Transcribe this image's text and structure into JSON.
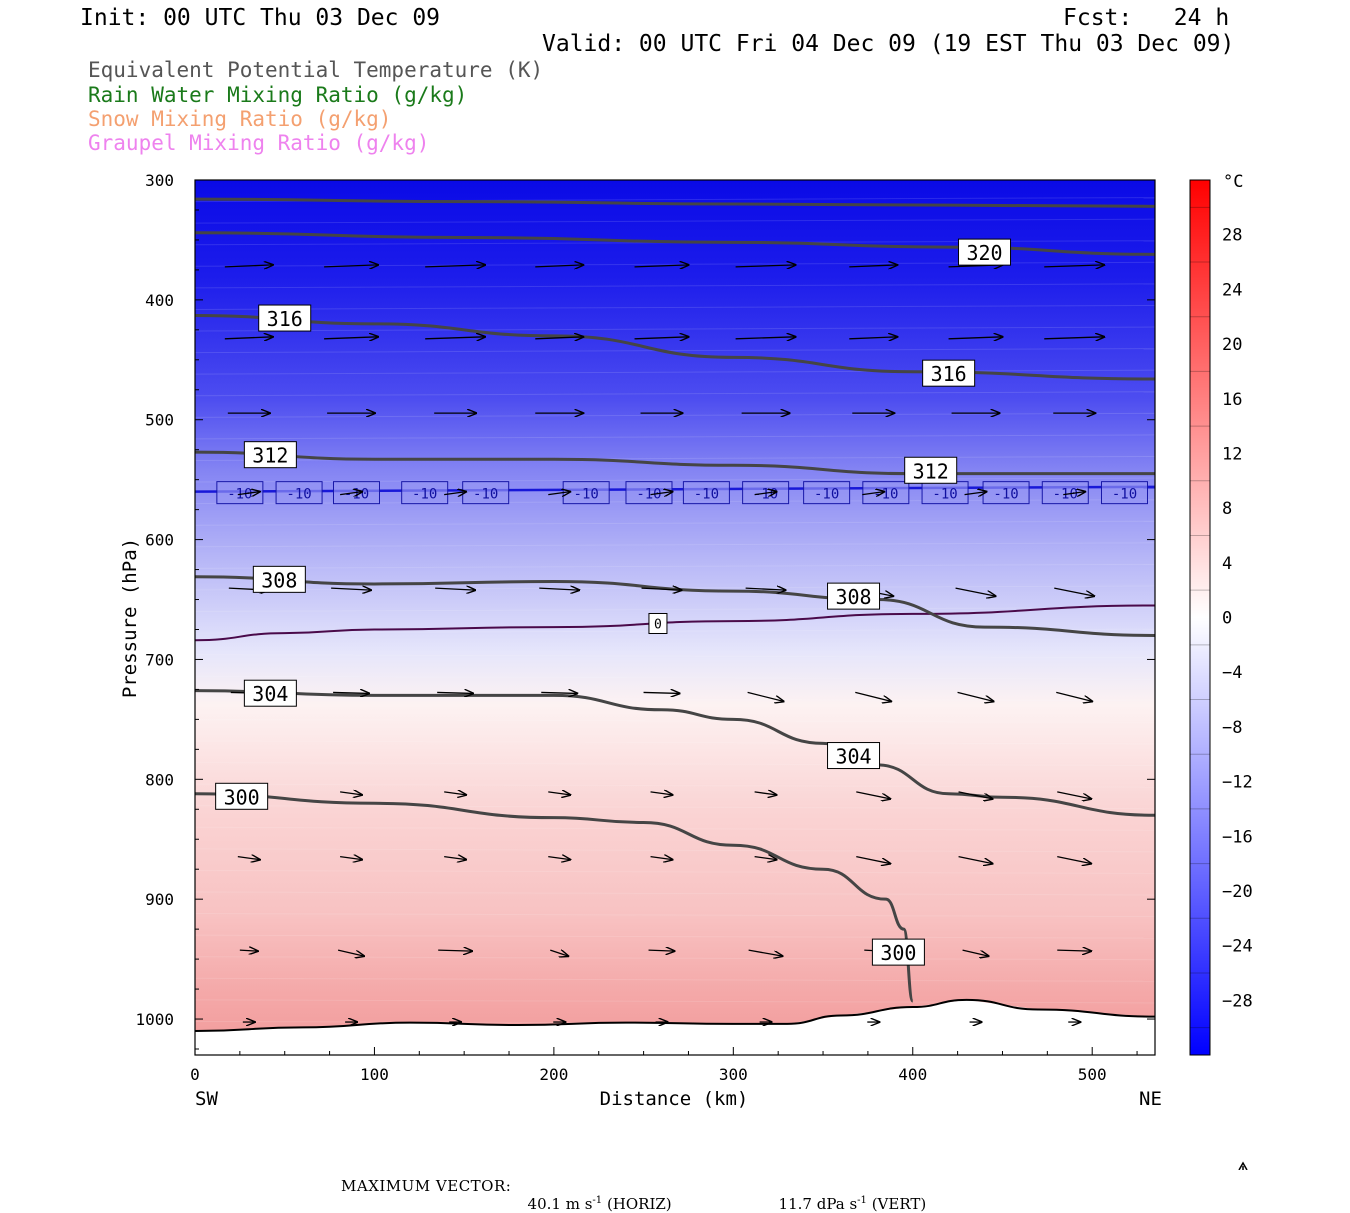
{
  "header": {
    "init": "Init: 00 UTC Thu 03 Dec 09",
    "fcst": "Fcst:   24 h",
    "valid": "Valid: 00 UTC Fri 04 Dec 09 (19 EST Thu 03 Dec 09)"
  },
  "legend": {
    "items": [
      {
        "label": "Equivalent Potential Temperature (K)",
        "color": "#555555"
      },
      {
        "label": "Rain Water Mixing Ratio (g/kg)",
        "color": "#1a7a1a"
      },
      {
        "label": "Snow Mixing Ratio (g/kg)",
        "color": "#f4a070"
      },
      {
        "label": "Graupel Mixing Ratio (g/kg)",
        "color": "#ee82ee"
      }
    ]
  },
  "footer": {
    "max_vector_label": "MAXIMUM VECTOR:",
    "horiz": "40.1 m s",
    "horiz_exp": "-1",
    "horiz_tag": "(HORIZ)",
    "vert": "11.7 dPa s",
    "vert_exp": "-1",
    "vert_tag": "(VERT)"
  },
  "chart_data": {
    "type": "cross-section contour",
    "xlabel": "Distance (km)",
    "ylabel": "Pressure (hPa)",
    "x_ticks": [
      0,
      100,
      200,
      300,
      400,
      500
    ],
    "xlim": [
      0,
      535
    ],
    "y_ticks": [
      300,
      400,
      500,
      600,
      700,
      800,
      900,
      1000
    ],
    "ylim": [
      1030,
      300
    ],
    "left_end": "SW",
    "right_end": "NE",
    "colorbar": {
      "unit": "°C",
      "ticks": [
        28,
        24,
        20,
        16,
        12,
        8,
        4,
        0,
        -4,
        -8,
        -12,
        -16,
        -20,
        -24,
        -28
      ],
      "range": [
        -32,
        32
      ]
    },
    "theta_e_contours": [
      {
        "label": "320",
        "points": [
          [
            0,
            316
          ],
          [
            150,
            318
          ],
          [
            300,
            320
          ],
          [
            420,
            321
          ],
          [
            535,
            322
          ]
        ]
      },
      {
        "label": "320",
        "points": [
          [
            0,
            344
          ],
          [
            150,
            348
          ],
          [
            300,
            352
          ],
          [
            420,
            356
          ],
          [
            535,
            362
          ]
        ]
      },
      {
        "label": "316",
        "points": [
          [
            0,
            413
          ],
          [
            100,
            420
          ],
          [
            200,
            430
          ],
          [
            300,
            448
          ],
          [
            400,
            460
          ],
          [
            535,
            466
          ]
        ]
      },
      {
        "label": "312",
        "points": [
          [
            0,
            527
          ],
          [
            100,
            533
          ],
          [
            200,
            533
          ],
          [
            300,
            538
          ],
          [
            400,
            545
          ],
          [
            535,
            545
          ]
        ]
      },
      {
        "label": "308",
        "points": [
          [
            0,
            631
          ],
          [
            100,
            637
          ],
          [
            200,
            635
          ],
          [
            300,
            643
          ],
          [
            380,
            650
          ],
          [
            440,
            673
          ],
          [
            535,
            680
          ]
        ]
      },
      {
        "label": "304",
        "points": [
          [
            0,
            726
          ],
          [
            100,
            730
          ],
          [
            200,
            730
          ],
          [
            260,
            742
          ],
          [
            300,
            750
          ],
          [
            350,
            770
          ],
          [
            380,
            788
          ],
          [
            420,
            812
          ],
          [
            450,
            815
          ],
          [
            535,
            830
          ]
        ]
      },
      {
        "label": "300",
        "points": [
          [
            0,
            812
          ],
          [
            100,
            820
          ],
          [
            200,
            832
          ],
          [
            250,
            836
          ],
          [
            300,
            855
          ],
          [
            350,
            875
          ],
          [
            385,
            900
          ],
          [
            395,
            925
          ],
          [
            400,
            985
          ]
        ]
      }
    ],
    "contour_labels": [
      {
        "text": "320",
        "x": 440,
        "p": 361
      },
      {
        "text": "316",
        "x": 50,
        "p": 416
      },
      {
        "text": "316",
        "x": 420,
        "p": 462
      },
      {
        "text": "312",
        "x": 42,
        "p": 530
      },
      {
        "text": "312",
        "x": 410,
        "p": 543
      },
      {
        "text": "308",
        "x": 47,
        "p": 634
      },
      {
        "text": "308",
        "x": 367,
        "p": 648
      },
      {
        "text": "304",
        "x": 42,
        "p": 729
      },
      {
        "text": "304",
        "x": 367,
        "p": 781
      },
      {
        "text": "300",
        "x": 26,
        "p": 815
      },
      {
        "text": "300",
        "x": 392,
        "p": 945
      }
    ],
    "isotherm_0": {
      "label": "0",
      "points": [
        [
          0,
          684
        ],
        [
          50,
          678
        ],
        [
          100,
          675
        ],
        [
          200,
          673
        ],
        [
          300,
          668
        ],
        [
          400,
          662
        ],
        [
          535,
          655
        ]
      ]
    },
    "isotherm_minus10": {
      "label": "-10",
      "p": 560,
      "label_x": [
        25,
        58,
        90,
        128,
        162,
        218,
        253,
        285,
        318,
        352,
        385,
        418,
        452,
        485,
        518
      ]
    },
    "vector_rows_hPa": [
      370,
      430,
      492,
      560,
      638,
      725,
      808,
      862,
      940,
      1000
    ],
    "vector_cols_km": [
      30,
      87,
      145,
      203,
      260,
      318,
      378,
      435,
      490
    ]
  }
}
